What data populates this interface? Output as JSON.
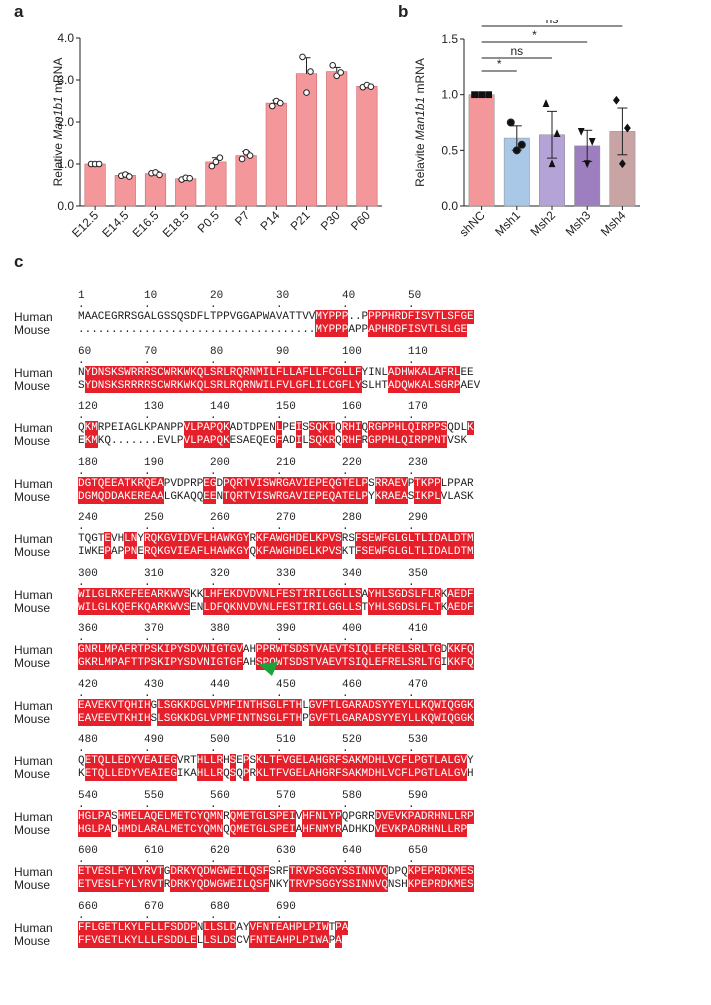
{
  "panels": {
    "a": "a",
    "b": "b",
    "c": "c"
  },
  "chart_data": [
    {
      "type": "bar",
      "ylabel_plain": "Relative ",
      "ylabel_italic": "Man1b1",
      "ylabel_tail": " mRNA",
      "ylim": [
        0,
        4.0
      ],
      "yticks": [
        "0.0",
        "1.0",
        "2.0",
        "3.0",
        "4.0"
      ],
      "ytick_values": [
        0,
        1,
        2,
        3,
        4
      ],
      "categories": [
        "E12.5",
        "E14.5",
        "E16.5",
        "E18.5",
        "P0.5",
        "P7",
        "P14",
        "P21",
        "P30",
        "P60"
      ],
      "values": [
        1.0,
        0.73,
        0.77,
        0.65,
        1.05,
        1.2,
        2.45,
        3.15,
        3.2,
        2.85
      ],
      "errors": [
        0.01,
        0.05,
        0.05,
        0.04,
        0.1,
        0.1,
        0.07,
        0.38,
        0.1,
        0.03
      ],
      "points": [
        [
          1.0,
          1.0,
          1.0
        ],
        [
          0.72,
          0.75,
          0.7
        ],
        [
          0.78,
          0.8,
          0.74
        ],
        [
          0.63,
          0.67,
          0.66
        ],
        [
          0.95,
          1.05,
          1.15
        ],
        [
          1.12,
          1.28,
          1.2
        ],
        [
          2.38,
          2.5,
          2.45
        ],
        [
          3.55,
          2.7,
          3.2
        ],
        [
          3.35,
          3.1,
          3.18
        ],
        [
          2.83,
          2.88,
          2.84
        ]
      ],
      "bar_color": "#f4979b"
    },
    {
      "type": "bar",
      "ylabel_plain": "Relavite ",
      "ylabel_italic": "Man1b1",
      "ylabel_tail": " mRNA",
      "ylim": [
        0,
        1.5
      ],
      "yticks": [
        "0.0",
        "0.5",
        "1.0",
        "1.5"
      ],
      "ytick_values": [
        0,
        0.5,
        1.0,
        1.5
      ],
      "categories": [
        "shNC",
        "Msh1",
        "Msh2",
        "Msh3",
        "Msh4"
      ],
      "values": [
        1.0,
        0.61,
        0.64,
        0.54,
        0.67
      ],
      "errors": [
        0.0,
        0.11,
        0.21,
        0.14,
        0.21
      ],
      "points": [
        [
          1.0,
          1.0,
          1.0
        ],
        [
          0.75,
          0.55,
          0.5
        ],
        [
          0.92,
          0.65,
          0.38
        ],
        [
          0.67,
          0.58,
          0.38
        ],
        [
          0.95,
          0.7,
          0.38
        ]
      ],
      "colors": [
        "#f4979b",
        "#a9c7e6",
        "#b3a3d6",
        "#9d7fc0",
        "#c9a4a4"
      ],
      "markers": [
        "square",
        "circle",
        "triangle",
        "down-triangle",
        "diamond"
      ],
      "comparisons": [
        {
          "from": 0,
          "to": 4,
          "label": "ns"
        },
        {
          "from": 0,
          "to": 3,
          "label": "*"
        },
        {
          "from": 0,
          "to": 2,
          "label": "ns"
        },
        {
          "from": 0,
          "to": 1,
          "label": "*"
        }
      ]
    }
  ],
  "alignment": {
    "labels": {
      "human": "Human",
      "mouse": "Mouse"
    },
    "blocks": [
      {
        "ruler": "1         10        20        30        40        50",
        "human": "MAACEGRRSGALGSSQSDFLTPPVGGAPWAVATTVVMYPPP..PPPPHRDFISVTLSFGE",
        "mouse": "....................................MYPPPAPPAPHRDFISVTLSLGE",
        "hmask": "000000000000000000000000000000000000RRRRR000RRRRRRRRRRRRRRBRR",
        "mmask": "000000000000000000000000000000000000RRRRR000RRRRRRRRRRRRRRBRR"
      },
      {
        "ruler": "60        70        80        90        100       110",
        "human": "NYDNSKSWRRRSCWRKWKQLSRLRQRNMILFLLAFLLFCGLLFYINLADHWKALAFRLEE",
        "mouse": "SYDNSKSRRRRSCWRKWKQLSRLRQRNWILFVLGFLILCGFLYSLHTADQWKALSGRPAEV",
        "hmask": "0RRRRRRBRRRRRRRRRRRRRRRRRRRBRRRBRBRRBRRRBRR0000BRRBRRRRBBB000",
        "mmask": "0RRRRRRBRRRRRRRRRRRRRRRRRRRBRRRBRBRRBRRRBRR0000BRRBRRRRBBB000"
      },
      {
        "ruler": "120       130       140       150       160       170",
        "human": "QKMRPEIAGLKPANPPVLPAPQKADTDPENLPEISSQKTQRHIQRGPPHLQIRPPSQDLK",
        "mouse": "EKMKQ.......EVLPVLPAPQKESAEQEGFADILSQKRQRHFRGPPHLQIRPPNTVSK",
        "hmask": "0RR0000000000000RRRRRRR0000000R00B0RRRB0RRR0RRRRRRRRRRRR000R",
        "mmask": "0RR0000000000000RRRRRRR0000000R00B0RRRB0RRR0RRRRRRRRRRRR000R"
      },
      {
        "ruler": "180       190       200       210       220       230",
        "human": "DGTQEEATKRQEAPVDPRPEGDPQRTVISWRGAVIEPEQGTELPSRRAEVPTKPPLPPAR",
        "mouse": "DGMQDDAKEREAALGKAQQEENTQRTVISWRGAVIEPEQATELPYKRAEASIKPLVLASK",
        "hmask": "RRBRBBRBBRBRB000000RB0BRRRRRRRRRRRRRRRRBRRRB0RRRRB0BRRB00000",
        "mmask": "RRBRBBRBBRBRB000000RB0BRRRRRRRRRRRRRRRRBRRRB0RRRRB0BRRB00000"
      },
      {
        "ruler": "240       250       260       270       280       290",
        "human": "TQGTEVHLNYRQKGVIDVFLHAWKGYRKFAWGHDELKPVSRSFSEWFGLGLTLIDALDTM",
        "mouse": "IWKEPAPPNERQKGVIEAFLHAWKGYQKFAWGHDELKPVSKTFSEWFGLGLTLIDALDTM",
        "hmask": "0000B00BR0RRRRRRBBRRRRRRRR0RRRRRRRRRRRRR00RRRRRRRRRRRRRRRRRR",
        "mmask": "0000B00BR0RRRRRRBBRRRRRRRR0RRRRRRRRRRRRR00RRRRRRRRRRRRRRRRRR"
      },
      {
        "ruler": "300       310       320       330       340       350",
        "human": "WILGLRKEFEEARKWVSKKLHFEKDVDVNLFESTIRILGGLLSAYHLSGDSLFLRKAEDF",
        "mouse": "WILGLKQEFKQARKWVSENLDFQKNVDVNLFESTIRILGGLLSTYHLSGDSLFLTKAEDF",
        "hmask": "RRRRRBBRRBBRRRRRR00RBRBBRRRRRRRRRRRRRRRRRRB0RRRRRRRRRRB0RRRR",
        "mmask": "RRRRRBBRRBBRRRRRR00RBRBBRRRRRRRRRRRRRRRRRRB0RRRRRRRRRRB0RRRR"
      },
      {
        "ruler": "360       370       380       390       400       410",
        "human": "GNRLMPAFRTPSKIPYSDVNIGTGVAHPPRWTSDSTVAEVTSIQLEFRELSRLTGDKKFQ",
        "mouse": "GKRLMPAFTTPSKIPYSDVNIGTGFAHSPQWTSDSTVAEVTSIQLEFRELSRLTGIKKFQ",
        "hmask": "RBRRRRRRBRRRRRRRRRRRRRRRB00BRBRRRRRRRRRRRRRRRRRRRRRRRRR0RRRR",
        "mmask": "RBRRRRRRBRRRRRRRRRRRRRRRB00BRBRRRRRRRRRRRRRRRRRRRRRRRRR0RRRR"
      },
      {
        "ruler": "420       430       440       450       460       470",
        "human": "EAVEKVTQHIHGLSGKKDGLVPMFINTHSGLFTHLGVFTLGARADSYYEYLLKQWIQGGK",
        "mouse": "EAVEEVTKHIHSLSGKKDGLVPMFINTNSGLFTHPGVFTLGARADSYYEYLLKQWIQGGK",
        "hmask": "RRRRBRRBRRR0RRRRRRRRRRRRRRRBRRRRRR0RRRRRRRRRRRRRRRRRRRRRRRRR",
        "mmask": "RRRRBRRBRRR0RRRRRRRRRRRRRRRBRRRRRR0RRRRRRRRRRRRRRRRRRRRRRRRR"
      },
      {
        "ruler": "480       490       500       510       520       530",
        "human": "QETQLLEDYVEAIEGVRTHLLRHSEPSKLTFVGELAHGRFSAKMDHLVCFLPGTLALGVY",
        "mouse": "KETQLLEDYVEAIEGIKAHLLRQSQPRKLTFVGELAHGRFSAKMDHLVCFLPGTLALGVH",
        "hmask": "0RRRRRRRRRRRRRR000RRRR0B0B0RRRRRRRRRRRRRRRRRRRRRRRRRRRRRRRR0",
        "mmask": "0RRRRRRRRRRRRRR000RRRR0B0B0RRRRRRRRRRRRRRRRRRRRRRRRRRRRRRRR0"
      },
      {
        "ruler": "540       550       560       570       580       590",
        "human": "HGLPASHMELAQELMETCYQMNRQMETGLSPEIVHFNLYPQPGRRDVEVKPADRHNLLRP",
        "mouse": "HGLPADHMDLARALMETCYQMNQQMETGLSPEIAHFNMYRADHKDVEVKPADRHNLLRP",
        "hmask": "RRRRB0RRBRRBBRRRRRRRRR0RRRRRRRRRB0RRRBRB00000RRRRRRRRRRRRRRR",
        "mmask": "RRRRB0RRBRRBBRRRRRRRRR0RRRRRRRRRB0RRRBRB00000RRRRRRRRRRRRRRR"
      },
      {
        "ruler": "600       610       620       630       640       650",
        "human": "ETVESLFYLYRVTGDRKYQDWGWEILQSFSRFTRVPSGGYSSINNVQDPQKPEPRDKMES",
        "mouse": "ETVESLFYLYRVTRDRKYQDWGWEILQSFNKYTRVPSGGYSSINNVQNSHKPEPRDKMES",
        "hmask": "RRRRRRRRRRRRR0RRRRRRRRRRRRRRR000RRRRRRRRRRRRRRR000RRRRRRRRRR",
        "mmask": "RRRRRRRRRRRRR0RRRRRRRRRRRRRRR000RRRRRRRRRRRRRRR000RRRRRRRRRR"
      },
      {
        "ruler": "660       670       680       690",
        "human": "FFLGETLKYLFLLFSDDPNLLSLDAYVFNTEAHPLPIWTPA",
        "mouse": "FFVGETLKYLLLFSDDLELLSLDSCVFNTEAHPLPIWAPA",
        "hmask": "RRBRRRRRRRBRRRRRRB0RRRRR00RRRRRRRRRRRR0RR",
        "mmask": "RRBRRRRRRRBRRRRRRB0RRRRR00RRRRRRRRRRRR0RR"
      }
    ]
  }
}
